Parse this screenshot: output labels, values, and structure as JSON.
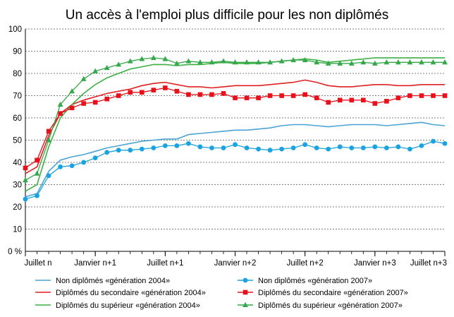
{
  "chart_data": {
    "type": "line",
    "title": "Un accès à l'emploi plus difficile pour les non diplômés",
    "xlabel": "",
    "ylabel": "",
    "ylim": [
      0,
      100
    ],
    "y_ticks": [
      "0 %",
      "10",
      "20",
      "30",
      "40",
      "50",
      "60",
      "70",
      "80",
      "90",
      "100"
    ],
    "x_tick_labels": [
      {
        "label": "Juillet n",
        "month": 0
      },
      {
        "label": "Janvier n+1",
        "month": 6
      },
      {
        "label": "Juillet n+1",
        "month": 12
      },
      {
        "label": "Janvier n+2",
        "month": 18
      },
      {
        "label": "Juillet n+2",
        "month": 24
      },
      {
        "label": "Janvier n+3",
        "month": 30
      },
      {
        "label": "Juillet n+3",
        "month": 36
      }
    ],
    "grid": "horizontal",
    "legend_position": "bottom",
    "x": [
      0,
      1,
      2,
      3,
      4,
      5,
      6,
      7,
      8,
      9,
      10,
      11,
      12,
      13,
      14,
      15,
      16,
      17,
      18,
      19,
      20,
      21,
      22,
      23,
      24,
      25,
      26,
      27,
      28,
      29,
      30,
      31,
      32,
      33,
      34,
      35,
      36
    ],
    "series": [
      {
        "name": "Non diplômés «génération 2004»",
        "color": "#4aa3d4",
        "style": "line",
        "values": [
          24.5,
          26,
          36,
          41,
          42.5,
          43.5,
          45,
          46.5,
          47.5,
          48.5,
          49.5,
          50,
          50.5,
          50.5,
          52.5,
          53,
          53.5,
          54,
          54.5,
          54.5,
          55,
          55.5,
          56.5,
          57,
          57,
          56.5,
          56,
          56.5,
          57,
          57,
          57,
          56.5,
          57,
          57.5,
          58,
          57,
          56.5
        ]
      },
      {
        "name": "Diplômés du secondaire «génération 2004»",
        "color": "#e02020",
        "style": "line",
        "values": [
          35,
          38,
          52,
          62,
          66,
          68,
          69.5,
          71,
          72,
          73,
          74.5,
          75.5,
          76,
          75,
          74,
          74,
          73.5,
          74,
          74.5,
          74.5,
          74.5,
          75,
          75.5,
          76,
          77,
          76,
          74.5,
          74,
          74,
          74.5,
          75,
          75,
          74.5,
          74.5,
          75,
          75,
          75
        ]
      },
      {
        "name": "Diplômés du supérieur «génération 2004»",
        "color": "#3cb043",
        "style": "line",
        "values": [
          27,
          30,
          47,
          60,
          66,
          71,
          75,
          78,
          80,
          82,
          83,
          84,
          84,
          83.5,
          84,
          84,
          84.5,
          85,
          84.5,
          84.5,
          84.5,
          85,
          85.5,
          86,
          86.5,
          86,
          85,
          85.5,
          86,
          86.5,
          87,
          87,
          87,
          87,
          87,
          87,
          87
        ]
      },
      {
        "name": "Non diplômés «génération 2007»",
        "color": "#1aa3e0",
        "style": "marker-circle",
        "values": [
          23.5,
          25,
          34,
          38,
          38.5,
          40,
          42,
          44.5,
          45.5,
          45.5,
          46,
          46.5,
          47.5,
          47.5,
          48.5,
          47,
          46.5,
          46.5,
          48,
          46.5,
          46,
          45.5,
          46,
          46.5,
          48,
          46.5,
          46,
          47,
          46.5,
          46.5,
          47,
          46.5,
          47,
          46,
          47.5,
          49.5,
          48.5
        ]
      },
      {
        "name": "Diplômés du secondaire «génération 2007»",
        "color": "#e8101a",
        "style": "marker-square",
        "values": [
          37.5,
          41,
          54,
          62,
          64.5,
          66.5,
          67,
          68.5,
          70,
          71.5,
          71.5,
          72.5,
          73.5,
          72,
          70.5,
          70.5,
          70.5,
          71,
          69,
          69,
          69,
          70,
          70,
          70,
          70.5,
          69,
          67,
          68,
          68,
          68,
          66.5,
          67.5,
          69,
          70,
          70,
          70,
          70
        ]
      },
      {
        "name": "Diplômés du supérieur «génération 2007»",
        "color": "#35a84a",
        "style": "marker-triangle",
        "values": [
          32,
          35,
          50,
          66,
          72,
          77.5,
          81,
          82.5,
          84,
          85.5,
          86.5,
          87,
          86.5,
          84.5,
          85.5,
          85,
          85,
          85.5,
          85,
          85,
          85,
          85,
          85.5,
          86,
          86,
          85,
          84.5,
          84.5,
          84.5,
          85,
          84.5,
          85,
          85,
          85,
          85,
          85,
          85
        ]
      }
    ]
  }
}
